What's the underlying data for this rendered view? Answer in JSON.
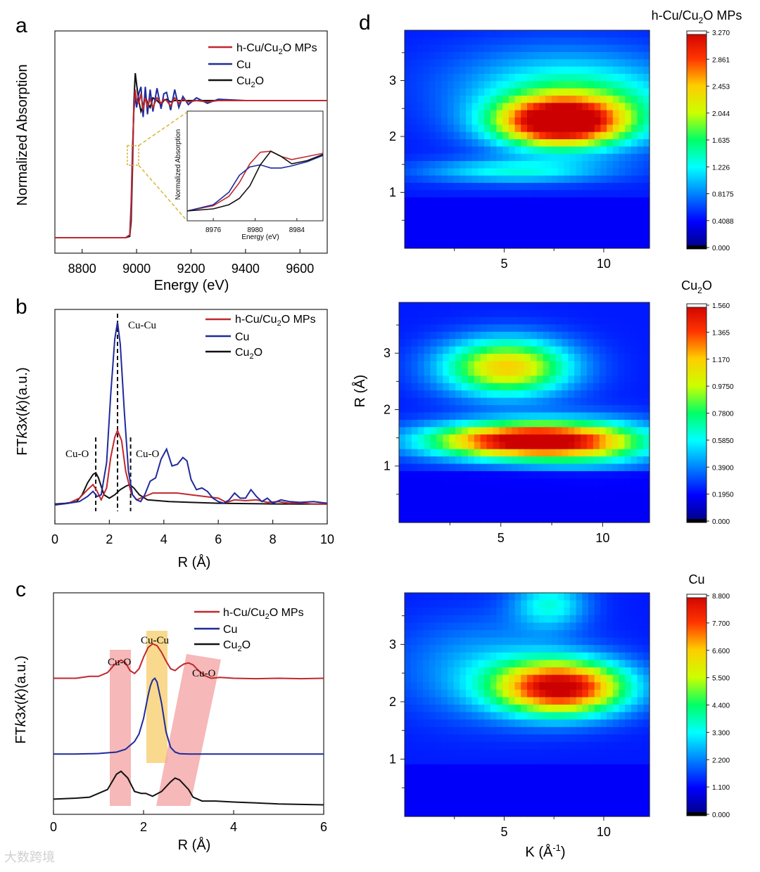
{
  "panels": {
    "a": {
      "letter": "a"
    },
    "b": {
      "letter": "b"
    },
    "c": {
      "letter": "c"
    },
    "d": {
      "letter": "d"
    }
  },
  "colors": {
    "hcu": "#c0282d",
    "cu": "#1f2a9c",
    "cu2o": "#111111",
    "pinkband": "#f4a6a6",
    "yellowband": "#f8d27a",
    "dashed_zoom": "#d9b53a"
  },
  "legend": {
    "hcu": {
      "pre": "h-Cu/Cu",
      "sub": "2",
      "post": "O MPs"
    },
    "cu": {
      "label": "Cu"
    },
    "cu2o": {
      "pre": "Cu",
      "sub": "2",
      "post": "O"
    }
  },
  "annotations_b": {
    "cuo_left": "Cu-O",
    "cucu": "Cu-Cu",
    "cuo_right": "Cu-O"
  },
  "annotations_c": {
    "cuo_left": "Cu-O",
    "cucu": "Cu-Cu",
    "cuo_right": "Cu-O"
  },
  "ylabel_ft": {
    "pre": "FT",
    "k": "k",
    "mid": "3",
    "x": "x",
    "open": "(",
    "kk": "k",
    "close": ")(a.u.)"
  },
  "inset": {
    "ylabel": "Normalized  Absorption",
    "xlabel": "Energy (eV)",
    "xticks": [
      "8976",
      "8980",
      "8984"
    ]
  },
  "watermark": "大数跨境",
  "chart_data": [
    {
      "id": "a",
      "type": "line",
      "title": "",
      "xlabel": "Energy  (eV)",
      "ylabel": "Normalized  Absorption",
      "xlim": [
        8700,
        9700
      ],
      "ylim": [
        -0.1,
        1.6
      ],
      "xticks": [
        8800,
        9000,
        9200,
        9400,
        9600
      ],
      "xtick_labels": [
        "8800",
        "9000",
        "9200",
        "9400",
        "9600"
      ],
      "series": [
        {
          "name": "h-Cu/Cu2O MPs",
          "color": "#c0282d",
          "x": [
            8700,
            8960,
            8975,
            8980,
            8985,
            8990,
            8995,
            9000,
            9008,
            9016,
            9024,
            9032,
            9040,
            9050,
            9060,
            9075,
            9090,
            9100,
            9110,
            9125,
            9140,
            9155,
            9170,
            9190,
            9220,
            9260,
            9300,
            9400,
            9500,
            9600,
            9700
          ],
          "y": [
            0,
            0,
            0.02,
            0.2,
            0.6,
            0.95,
            1.08,
            1.0,
            0.98,
            1.05,
            0.93,
            1.02,
            0.96,
            1.01,
            0.95,
            1.02,
            0.98,
            1.01,
            1.0,
            0.96,
            1.02,
            0.98,
            1.01,
            0.99,
            1.0,
            0.99,
            1.0,
            1.0,
            1.0,
            1.0,
            1.0
          ]
        },
        {
          "name": "Cu",
          "color": "#1f2a9c",
          "x": [
            8700,
            8960,
            8975,
            8980,
            8985,
            8990,
            8995,
            9000,
            9008,
            9016,
            9024,
            9032,
            9040,
            9050,
            9060,
            9075,
            9090,
            9100,
            9110,
            9125,
            9140,
            9155,
            9170,
            9190,
            9220,
            9260,
            9300,
            9400,
            9500,
            9600,
            9700
          ],
          "y": [
            0,
            0,
            0.02,
            0.25,
            0.65,
            0.92,
            1.04,
            0.95,
            1.05,
            1.1,
            0.88,
            1.1,
            0.9,
            1.08,
            0.92,
            1.09,
            0.94,
            1.05,
            1.06,
            0.93,
            1.08,
            0.95,
            1.03,
            0.97,
            1.02,
            0.98,
            1.01,
            1.0,
            1.0,
            1.0,
            1.0
          ]
        },
        {
          "name": "Cu2O",
          "color": "#111111",
          "x": [
            8700,
            8960,
            8975,
            8980,
            8985,
            8990,
            8995,
            9000,
            9008,
            9016,
            9024,
            9032,
            9040,
            9050,
            9060,
            9075,
            9090,
            9100,
            9110,
            9125,
            9140,
            9155,
            9170,
            9190,
            9220,
            9260,
            9300,
            9400,
            9500,
            9600,
            9700
          ],
          "y": [
            0,
            0,
            0.01,
            0.12,
            0.5,
            0.98,
            1.2,
            1.12,
            1.0,
            0.92,
            0.96,
            1.04,
            0.98,
            0.95,
            1.02,
            1.0,
            0.97,
            1.0,
            1.01,
            0.99,
            1.0,
            1.0,
            1.0,
            1.0,
            1.0,
            1.0,
            1.0,
            1.0,
            1.0,
            1.0,
            1.0
          ]
        }
      ]
    },
    {
      "id": "a-inset",
      "type": "line",
      "xlabel": "Energy (eV)",
      "ylabel": "Normalized  Absorption",
      "xlim": [
        8973.5,
        8986.5
      ],
      "ylim": [
        0,
        1
      ],
      "xticks": [
        8976,
        8980,
        8984
      ],
      "series": [
        {
          "name": "h-Cu/Cu2O MPs",
          "color": "#c0282d",
          "x": [
            8973.5,
            8976,
            8977.5,
            8978.5,
            8979.5,
            8980.5,
            8981.5,
            8982.5,
            8983.5,
            8985,
            8986.5
          ],
          "y": [
            0.0,
            0.05,
            0.14,
            0.27,
            0.45,
            0.56,
            0.57,
            0.52,
            0.49,
            0.52,
            0.55
          ]
        },
        {
          "name": "Cu",
          "color": "#1f2a9c",
          "x": [
            8973.5,
            8976,
            8977.5,
            8978.5,
            8979.5,
            8980.5,
            8981.5,
            8982.5,
            8983.5,
            8985,
            8986.5
          ],
          "y": [
            0.0,
            0.06,
            0.18,
            0.34,
            0.42,
            0.44,
            0.41,
            0.41,
            0.43,
            0.47,
            0.53
          ]
        },
        {
          "name": "Cu2O",
          "color": "#111111",
          "x": [
            8973.5,
            8976,
            8977.5,
            8978.5,
            8979.5,
            8980.5,
            8981.5,
            8982.5,
            8983.5,
            8985,
            8986.5
          ],
          "y": [
            0.0,
            0.02,
            0.06,
            0.12,
            0.24,
            0.44,
            0.57,
            0.52,
            0.45,
            0.48,
            0.54
          ]
        }
      ]
    },
    {
      "id": "b",
      "type": "line",
      "xlabel": "R (Å)",
      "ylabel": "FTk3x(k)(a.u.)",
      "xlim": [
        0,
        10
      ],
      "ylim": [
        -0.1,
        11
      ],
      "xticks": [
        0,
        2,
        4,
        6,
        8,
        10
      ],
      "xtick_labels": [
        "0",
        "2",
        "4",
        "6",
        "8",
        "10"
      ],
      "dashed_lines_x": [
        1.5,
        2.3,
        2.78
      ],
      "series": [
        {
          "name": "h-Cu/Cu2O MPs",
          "color": "#c0282d",
          "x": [
            0,
            0.5,
            0.9,
            1.2,
            1.4,
            1.55,
            1.7,
            1.9,
            2.05,
            2.2,
            2.3,
            2.45,
            2.6,
            2.8,
            3.0,
            3.3,
            3.6,
            4.0,
            4.5,
            5.0,
            5.5,
            6.0,
            6.3,
            6.6,
            7.0,
            7.4,
            7.8,
            8.2,
            8.6,
            9.0,
            9.5,
            10
          ],
          "y": [
            0,
            0.1,
            0.4,
            0.9,
            1.2,
            0.8,
            0.3,
            1.0,
            2.8,
            4.0,
            4.4,
            3.8,
            2.0,
            0.7,
            0.3,
            0.5,
            0.7,
            0.7,
            0.7,
            0.6,
            0.5,
            0.4,
            0.15,
            0.3,
            0.25,
            0.3,
            0.15,
            0.2,
            0.1,
            0.12,
            0.05,
            0.05
          ]
        },
        {
          "name": "Cu",
          "color": "#1f2a9c",
          "x": [
            0,
            0.5,
            0.9,
            1.2,
            1.4,
            1.55,
            1.7,
            1.9,
            2.05,
            2.2,
            2.3,
            2.4,
            2.55,
            2.7,
            2.85,
            3.0,
            3.15,
            3.3,
            3.5,
            3.7,
            3.9,
            4.1,
            4.3,
            4.5,
            4.7,
            4.85,
            5.0,
            5.2,
            5.4,
            5.6,
            5.8,
            6.0,
            6.2,
            6.4,
            6.6,
            6.8,
            7.0,
            7.2,
            7.4,
            7.6,
            7.8,
            8.0,
            8.3,
            8.6,
            9.0,
            9.5,
            10
          ],
          "y": [
            0,
            0.1,
            0.2,
            0.5,
            0.8,
            0.5,
            0.6,
            2.5,
            6.5,
            9.8,
            10.8,
            9.5,
            5.5,
            2.0,
            0.6,
            0.3,
            0.2,
            0.6,
            1.4,
            1.6,
            2.7,
            3.3,
            2.3,
            2.4,
            2.8,
            2.6,
            1.5,
            0.9,
            1.0,
            0.8,
            0.4,
            0.2,
            0.1,
            0.3,
            0.7,
            0.4,
            0.4,
            0.9,
            0.5,
            0.2,
            0.4,
            0.1,
            0.3,
            0.2,
            0.15,
            0.2,
            0.1
          ]
        },
        {
          "name": "Cu2O",
          "color": "#111111",
          "x": [
            0,
            0.4,
            0.8,
            1.0,
            1.2,
            1.4,
            1.5,
            1.6,
            1.8,
            2.0,
            2.2,
            2.4,
            2.6,
            2.75,
            2.9,
            3.1,
            3.4,
            3.8,
            4.2,
            5.0,
            6.0,
            7.0,
            8.0,
            9.0,
            10
          ],
          "y": [
            0.05,
            0.1,
            0.2,
            0.6,
            1.3,
            1.8,
            1.9,
            1.6,
            0.6,
            0.4,
            0.6,
            0.9,
            1.1,
            1.2,
            1.0,
            0.6,
            0.3,
            0.25,
            0.2,
            0.15,
            0.1,
            0.08,
            0.06,
            0.05,
            0.05
          ]
        }
      ]
    },
    {
      "id": "c",
      "type": "line",
      "xlabel": "R (Å)",
      "ylabel": "FTk3x(k)(a.u.)",
      "xlim": [
        0,
        6
      ],
      "ylim": [
        0,
        10
      ],
      "xticks": [
        0,
        2,
        4,
        6
      ],
      "xtick_labels": [
        "0",
        "2",
        "4",
        "6"
      ],
      "series": [
        {
          "name": "h-Cu/Cu2O MPs",
          "color": "#c0282d",
          "x": [
            0,
            0.5,
            0.8,
            1.0,
            1.2,
            1.35,
            1.5,
            1.6,
            1.7,
            1.8,
            1.9,
            2.0,
            2.1,
            2.2,
            2.3,
            2.4,
            2.5,
            2.6,
            2.7,
            2.8,
            2.9,
            3.0,
            3.1,
            3.2,
            3.35,
            3.5,
            3.7,
            4.0,
            4.5,
            5.0,
            5.5,
            6.0
          ],
          "y": [
            6.8,
            6.8,
            6.9,
            6.9,
            7.1,
            7.5,
            7.75,
            7.6,
            7.2,
            7.05,
            7.3,
            7.9,
            8.4,
            8.6,
            8.5,
            8.15,
            7.7,
            7.3,
            7.2,
            7.4,
            7.55,
            7.6,
            7.5,
            7.25,
            6.95,
            6.8,
            6.85,
            6.8,
            6.78,
            6.8,
            6.78,
            6.8
          ]
        },
        {
          "name": "Cu",
          "color": "#1f2a9c",
          "x": [
            0,
            0.5,
            1.0,
            1.4,
            1.6,
            1.8,
            1.9,
            2.0,
            2.1,
            2.15,
            2.2,
            2.25,
            2.3,
            2.4,
            2.5,
            2.6,
            2.7,
            2.8,
            3.0,
            3.5,
            4.0,
            5.0,
            6.0
          ],
          "y": [
            2.85,
            2.85,
            2.88,
            2.95,
            3.1,
            3.5,
            3.9,
            4.7,
            5.9,
            6.4,
            6.7,
            6.8,
            6.6,
            5.5,
            4.0,
            3.2,
            2.95,
            2.87,
            2.85,
            2.85,
            2.85,
            2.85,
            2.85
          ]
        },
        {
          "name": "Cu2O",
          "color": "#111111",
          "x": [
            0,
            0.5,
            0.8,
            1.0,
            1.2,
            1.4,
            1.5,
            1.65,
            1.8,
            1.95,
            2.05,
            2.2,
            2.4,
            2.6,
            2.7,
            2.8,
            3.0,
            3.1,
            3.3,
            3.6,
            4.0,
            4.5,
            5.0,
            6.0
          ],
          "y": [
            0.5,
            0.55,
            0.6,
            0.8,
            1.0,
            1.8,
            1.95,
            1.6,
            0.9,
            0.8,
            0.8,
            0.65,
            0.9,
            1.4,
            1.6,
            1.5,
            1.0,
            0.6,
            0.4,
            0.4,
            0.35,
            0.3,
            0.25,
            0.2
          ]
        }
      ],
      "bands": [
        {
          "label": "Cu-O",
          "color": "#f4a6a6",
          "region": "R 1.3–1.75"
        },
        {
          "label": "Cu-Cu",
          "color": "#f8d27a",
          "region": "R 2.1–2.55"
        },
        {
          "label": "Cu-O",
          "color": "#f4a6a6",
          "region": "R 2.5–3.7 (slanted)"
        }
      ]
    },
    {
      "id": "d1",
      "type": "heatmap",
      "title": "h-Cu/Cu2O MPs",
      "xlabel": "",
      "ylabel": "",
      "xlim": [
        0,
        12.3
      ],
      "ylim": [
        0,
        3.9
      ],
      "xticks": [
        5,
        10
      ],
      "yticks": [
        1,
        2,
        3
      ],
      "colorbar_ticks": [
        "3.270",
        "2.861",
        "2.453",
        "2.044",
        "1.635",
        "1.226",
        "0.8175",
        "0.4088",
        "0.000"
      ],
      "peaks": [
        {
          "k": 7.8,
          "r": 2.25,
          "value": 3.27,
          "sk": 2.2,
          "sr": 0.3
        },
        {
          "k": 5.5,
          "r": 1.38,
          "value": 0.9,
          "sk": 3.2,
          "sr": 0.15
        },
        {
          "k": 9.0,
          "r": 2.5,
          "value": 1.0,
          "sk": 3.5,
          "sr": 0.5
        },
        {
          "k": 7.5,
          "r": 3.0,
          "value": 0.5,
          "sk": 4.0,
          "sr": 0.5
        }
      ]
    },
    {
      "id": "d2",
      "type": "heatmap",
      "title": "Cu2O",
      "xlabel": "",
      "ylabel": "R (Å)",
      "xlim": [
        0,
        12.3
      ],
      "ylim": [
        0,
        3.9
      ],
      "xticks": [
        5,
        10
      ],
      "yticks": [
        1,
        2,
        3
      ],
      "colorbar_ticks": [
        "1.560",
        "1.365",
        "1.170",
        "0.9750",
        "0.7800",
        "0.5850",
        "0.3900",
        "0.1950",
        "0.000"
      ],
      "peaks": [
        {
          "k": 6.0,
          "r": 1.45,
          "value": 1.56,
          "sk": 3.2,
          "sr": 0.22
        },
        {
          "k": 5.3,
          "r": 2.75,
          "value": 1.08,
          "sk": 2.2,
          "sr": 0.35
        },
        {
          "k": 9.5,
          "r": 1.4,
          "value": 0.5,
          "sk": 2.5,
          "sr": 0.3
        }
      ]
    },
    {
      "id": "d3",
      "type": "heatmap",
      "title": "Cu",
      "xlabel": "K (Å-1)",
      "ylabel": "",
      "xlim": [
        0,
        12.3
      ],
      "ylim": [
        0,
        3.9
      ],
      "xticks": [
        5,
        10
      ],
      "yticks": [
        1,
        2,
        3
      ],
      "colorbar_ticks": [
        "8.800",
        "7.700",
        "6.600",
        "5.500",
        "4.400",
        "3.300",
        "2.200",
        "1.100",
        "0.000"
      ],
      "peaks": [
        {
          "k": 7.9,
          "r": 2.25,
          "value": 8.8,
          "sk": 2.3,
          "sr": 0.33
        },
        {
          "k": 7.3,
          "r": 3.7,
          "value": 2.5,
          "sk": 1.3,
          "sr": 0.3
        },
        {
          "k": 4.0,
          "r": 2.6,
          "value": 1.5,
          "sk": 3.0,
          "sr": 0.6
        }
      ]
    }
  ]
}
